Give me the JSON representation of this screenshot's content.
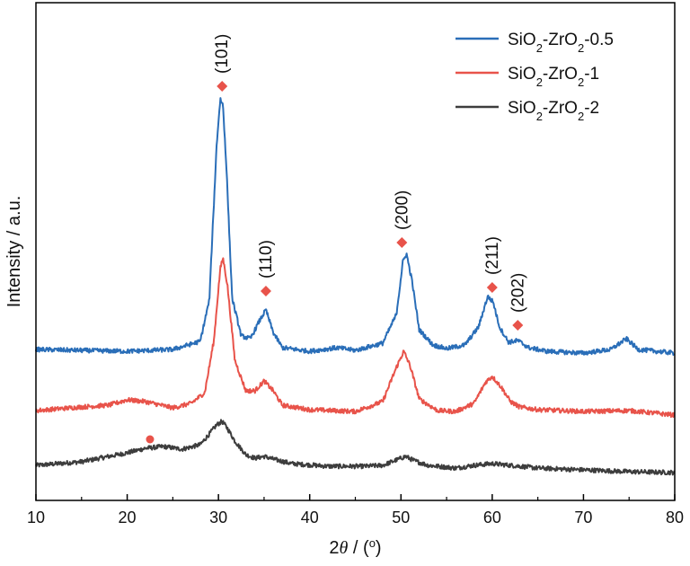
{
  "chart_data": {
    "type": "line",
    "xlabel_parts": [
      "2",
      "θ",
      " / (",
      "o",
      ")"
    ],
    "ylabel": "Intensity / a.u.",
    "xlim": [
      10,
      80
    ],
    "xticks": [
      10,
      20,
      30,
      40,
      50,
      60,
      70,
      80
    ],
    "xtick_labels": [
      "10",
      "20",
      "30",
      "40",
      "50",
      "60",
      "70",
      "80"
    ],
    "yticks_shown": false,
    "legend_position": "top-right",
    "series": [
      {
        "key": "sz2",
        "name": "SiO2-ZrO2-2",
        "name_parts": [
          "SiO",
          "2",
          "-ZrO",
          "2",
          "-2"
        ],
        "color": "#3d3d3d",
        "x": [
          10,
          15,
          20,
          22,
          24,
          26,
          28,
          29,
          29.8,
          30.4,
          31,
          31.8,
          33,
          34,
          35,
          36,
          38,
          42,
          46,
          48,
          49.5,
          50.5,
          51.5,
          53,
          56,
          58,
          60,
          62,
          65,
          70,
          75,
          80
        ],
        "y": [
          3,
          7,
          17,
          22,
          24,
          21,
          26,
          38,
          48,
          52,
          44,
          30,
          15,
          11,
          13,
          10,
          5,
          2,
          2,
          3,
          9,
          13,
          8,
          3,
          0,
          3,
          5,
          3,
          0,
          -2,
          -4,
          -5
        ]
      },
      {
        "key": "sz1",
        "name": "SiO2-ZrO2-1",
        "name_parts": [
          "SiO",
          "2",
          "-ZrO",
          "2",
          "-1"
        ],
        "color": "#e8534a",
        "x": [
          10,
          15,
          18,
          20,
          22,
          25,
          27,
          28.5,
          29.5,
          30.2,
          30.5,
          31,
          31.8,
          33,
          34,
          35,
          36,
          37,
          40,
          45,
          48,
          49.5,
          50.3,
          51,
          52,
          54,
          56,
          58,
          59.3,
          60,
          61,
          62,
          63,
          65,
          70,
          75,
          80
        ],
        "y": [
          2,
          6,
          8,
          14,
          12,
          5,
          10,
          22,
          80,
          160,
          172,
          140,
          58,
          24,
          24,
          35,
          24,
          8,
          3,
          1,
          12,
          50,
          68,
          52,
          15,
          2,
          1,
          10,
          34,
          40,
          28,
          12,
          6,
          3,
          1,
          2,
          -3
        ]
      },
      {
        "key": "sz05",
        "name": "SiO2-ZrO2-0.5",
        "name_parts": [
          "SiO",
          "2",
          "-ZrO",
          "2",
          "-0.5"
        ],
        "color": "#2a6eb8",
        "x": [
          10,
          15,
          20,
          25,
          28,
          29,
          29.8,
          30.2,
          30.5,
          30.9,
          31.5,
          32.5,
          33.5,
          34.5,
          35.2,
          36,
          37,
          40,
          43,
          45,
          48,
          49.5,
          50.2,
          50.6,
          51.2,
          52,
          53.5,
          55,
          57,
          58.5,
          59.5,
          60.1,
          60.8,
          61.8,
          62.8,
          64,
          66,
          70,
          73,
          74.7,
          76,
          80
        ],
        "y": [
          3,
          2,
          1,
          3,
          12,
          58,
          230,
          282,
          275,
          200,
          60,
          18,
          15,
          35,
          47,
          22,
          5,
          1,
          5,
          2,
          10,
          42,
          100,
          110,
          80,
          25,
          8,
          4,
          8,
          28,
          62,
          56,
          28,
          11,
          13,
          5,
          1,
          -1,
          3,
          15,
          3,
          -1
        ]
      }
    ],
    "phase_markers": [
      {
        "label": "(101)",
        "series": "sz05",
        "x": 30.4,
        "marker_y": 296,
        "shape": "diamond"
      },
      {
        "label": "(110)",
        "series": "sz05",
        "x": 35.2,
        "marker_y": 68,
        "shape": "diamond"
      },
      {
        "label": "(200)",
        "series": "sz05",
        "x": 50.1,
        "marker_y": 122,
        "shape": "diamond"
      },
      {
        "label": "(211)",
        "series": "sz05",
        "x": 60.0,
        "marker_y": 72,
        "shape": "diamond"
      },
      {
        "label": "(202)",
        "series": "sz05",
        "x": 62.8,
        "marker_y": 30,
        "shape": "diamond"
      }
    ],
    "sio2_marker": {
      "series": "sz2",
      "x": 22.5,
      "marker_y": 32,
      "shape": "circle"
    },
    "marker_color": "#e8534a"
  }
}
